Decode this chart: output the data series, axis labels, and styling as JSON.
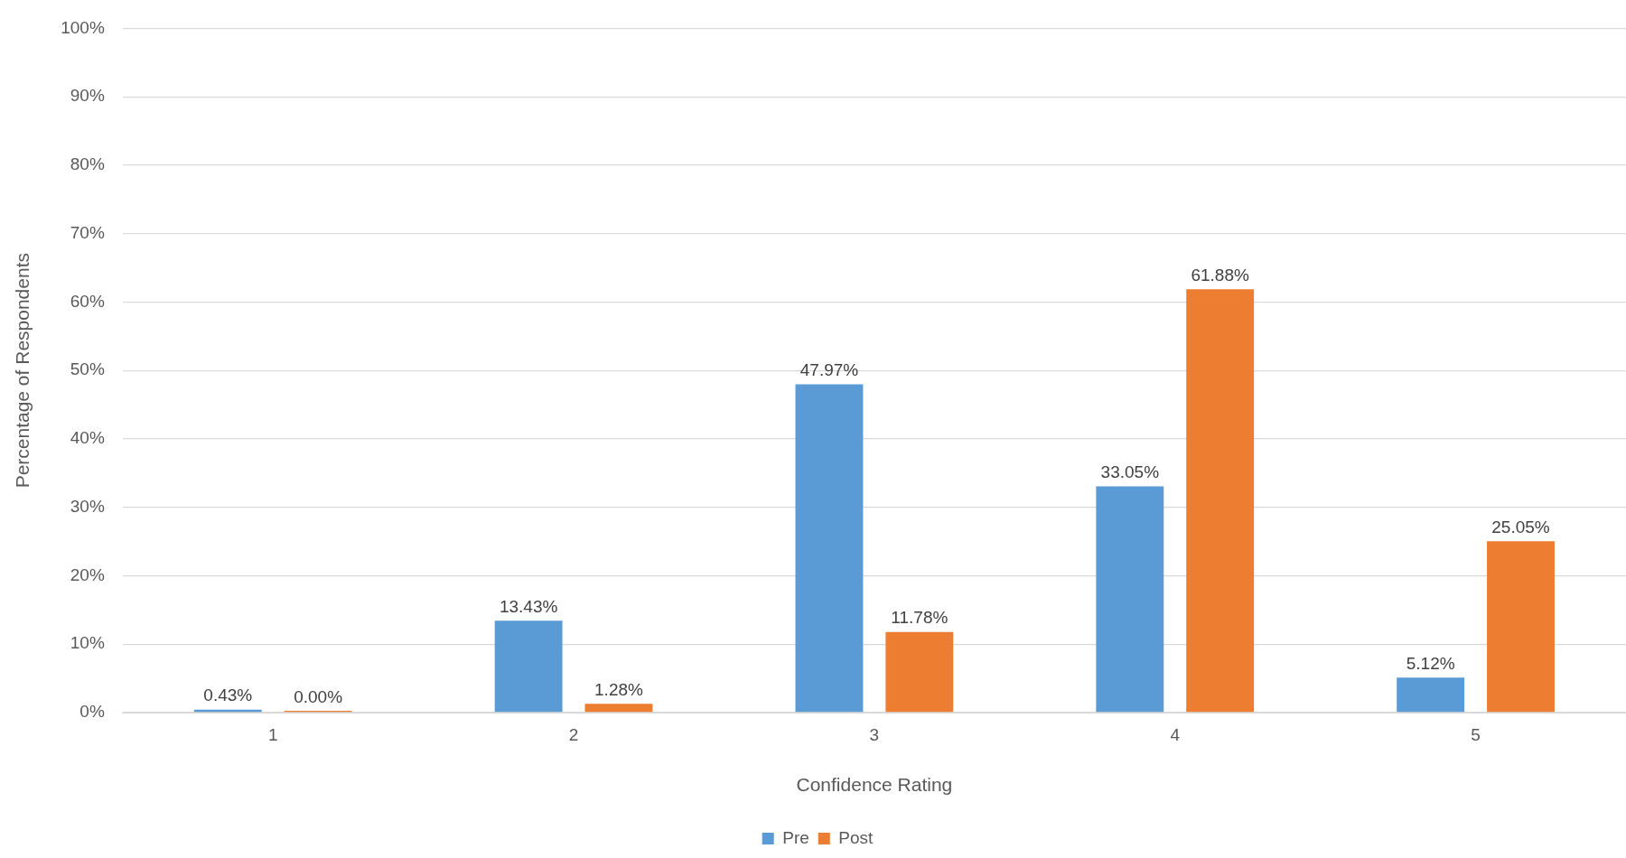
{
  "chart_data": {
    "type": "bar",
    "xlabel": "Confidence Rating",
    "ylabel": "Percentage of Respondents",
    "categories": [
      "1",
      "2",
      "3",
      "4",
      "5"
    ],
    "series": [
      {
        "name": "Pre",
        "color": "#5b9bd5",
        "values": [
          0.43,
          13.43,
          47.97,
          33.05,
          5.12
        ],
        "value_labels": [
          "0.43%",
          "13.43%",
          "47.97%",
          "33.05%",
          "5.12%"
        ]
      },
      {
        "name": "Post",
        "color": "#ed7d31",
        "values": [
          0,
          1.28,
          11.78,
          61.88,
          25.05
        ],
        "value_labels": [
          "0.00%",
          "1.28%",
          "11.78%",
          "61.88%",
          "25.05%"
        ]
      }
    ],
    "ylim": [
      0,
      100
    ],
    "yticks": [
      {
        "value": 0,
        "label": "0%"
      },
      {
        "value": 10,
        "label": "10%"
      },
      {
        "value": 20,
        "label": "20%"
      },
      {
        "value": 30,
        "label": "30%"
      },
      {
        "value": 40,
        "label": "40%"
      },
      {
        "value": 50,
        "label": "50%"
      },
      {
        "value": 60,
        "label": "60%"
      },
      {
        "value": 70,
        "label": "70%"
      },
      {
        "value": 80,
        "label": "80%"
      },
      {
        "value": 90,
        "label": "90%"
      },
      {
        "value": 100,
        "label": "100%"
      }
    ],
    "grid": "y",
    "legend": "bottom"
  }
}
